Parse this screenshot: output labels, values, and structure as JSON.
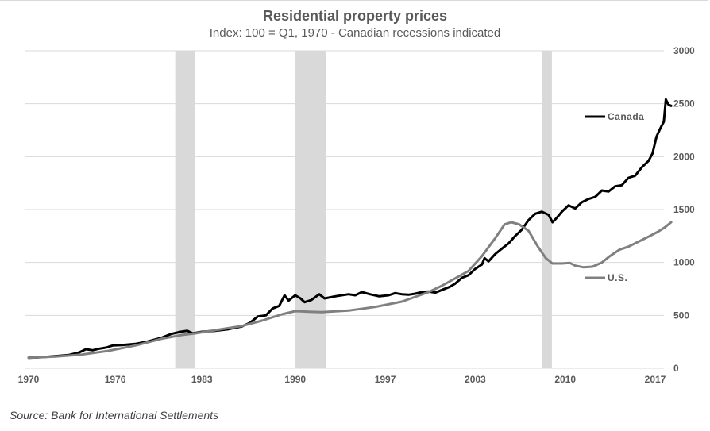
{
  "chart_data": {
    "type": "line",
    "title": "Residential property prices",
    "subtitle": "Index: 100 = Q1, 1970 - Canadian recessions indicated",
    "source": "Source: Bank for International Settlements",
    "xlabel": "",
    "ylabel": "",
    "x_ticks": [
      "1970",
      "1976",
      "1983",
      "1990",
      "1997",
      "2003",
      "2010",
      "2017"
    ],
    "x_tick_years": [
      1970,
      1976.5,
      1983,
      1990,
      1996.75,
      2003.5,
      2010.25,
      2017
    ],
    "xlim": [
      1970,
      2017.6
    ],
    "ylim": [
      0,
      3000
    ],
    "y_ticks": [
      0,
      500,
      1000,
      1500,
      2000,
      2500,
      3000
    ],
    "grid": true,
    "legend": "inline-right",
    "recessions": [
      [
        1981.0,
        1982.5
      ],
      [
        1990.0,
        1992.3
      ],
      [
        2008.5,
        2009.25
      ]
    ],
    "colors": {
      "canada": "#000000",
      "us": "#808080",
      "recession": "#d9d9d9",
      "grid": "#d9d9d9",
      "text": "#595959"
    },
    "series": [
      {
        "name": "Canada",
        "key": "canada",
        "points": [
          [
            1970,
            100
          ],
          [
            1971,
            105
          ],
          [
            1972,
            115
          ],
          [
            1973,
            125
          ],
          [
            1973.8,
            150
          ],
          [
            1974.3,
            180
          ],
          [
            1974.8,
            170
          ],
          [
            1975.3,
            185
          ],
          [
            1975.8,
            195
          ],
          [
            1976.3,
            215
          ],
          [
            1977,
            220
          ],
          [
            1978,
            230
          ],
          [
            1979,
            255
          ],
          [
            1980,
            290
          ],
          [
            1980.7,
            325
          ],
          [
            1981.4,
            345
          ],
          [
            1981.9,
            355
          ],
          [
            1982.3,
            330
          ],
          [
            1983,
            345
          ],
          [
            1984,
            355
          ],
          [
            1985,
            370
          ],
          [
            1986,
            395
          ],
          [
            1986.6,
            430
          ],
          [
            1987.2,
            490
          ],
          [
            1987.8,
            500
          ],
          [
            1988.3,
            565
          ],
          [
            1988.8,
            590
          ],
          [
            1989.2,
            690
          ],
          [
            1989.5,
            640
          ],
          [
            1990,
            690
          ],
          [
            1990.4,
            660
          ],
          [
            1990.7,
            625
          ],
          [
            1991.2,
            645
          ],
          [
            1991.8,
            700
          ],
          [
            1992.2,
            660
          ],
          [
            1993,
            680
          ],
          [
            1994,
            700
          ],
          [
            1994.5,
            690
          ],
          [
            1995,
            720
          ],
          [
            1995.6,
            700
          ],
          [
            1996.3,
            680
          ],
          [
            1997,
            690
          ],
          [
            1997.5,
            710
          ],
          [
            1998,
            700
          ],
          [
            1998.5,
            695
          ],
          [
            1999,
            705
          ],
          [
            1999.5,
            720
          ],
          [
            2000,
            725
          ],
          [
            2000.5,
            715
          ],
          [
            2001,
            740
          ],
          [
            2001.6,
            770
          ],
          [
            2002,
            800
          ],
          [
            2002.5,
            855
          ],
          [
            2003,
            880
          ],
          [
            2003.5,
            940
          ],
          [
            2004,
            980
          ],
          [
            2004.2,
            1040
          ],
          [
            2004.5,
            1010
          ],
          [
            2005,
            1080
          ],
          [
            2005.5,
            1130
          ],
          [
            2006,
            1180
          ],
          [
            2006.5,
            1250
          ],
          [
            2007,
            1310
          ],
          [
            2007.5,
            1400
          ],
          [
            2008,
            1460
          ],
          [
            2008.5,
            1480
          ],
          [
            2009,
            1450
          ],
          [
            2009.3,
            1380
          ],
          [
            2009.6,
            1420
          ],
          [
            2010,
            1480
          ],
          [
            2010.5,
            1540
          ],
          [
            2011,
            1510
          ],
          [
            2011.5,
            1570
          ],
          [
            2012,
            1600
          ],
          [
            2012.5,
            1620
          ],
          [
            2013,
            1680
          ],
          [
            2013.5,
            1670
          ],
          [
            2014,
            1720
          ],
          [
            2014.5,
            1730
          ],
          [
            2015,
            1800
          ],
          [
            2015.5,
            1820
          ],
          [
            2016,
            1900
          ],
          [
            2016.5,
            1960
          ],
          [
            2016.8,
            2030
          ],
          [
            2017.1,
            2190
          ],
          [
            2017.4,
            2270
          ],
          [
            2017.65,
            2330
          ],
          [
            2017.8,
            2540
          ],
          [
            2018,
            2490
          ],
          [
            2018.2,
            2480
          ]
        ]
      },
      {
        "name": "U.S.",
        "key": "us",
        "points": [
          [
            1970,
            100
          ],
          [
            1972,
            110
          ],
          [
            1974,
            130
          ],
          [
            1976,
            165
          ],
          [
            1978,
            215
          ],
          [
            1980,
            280
          ],
          [
            1981.5,
            315
          ],
          [
            1982.5,
            330
          ],
          [
            1984,
            360
          ],
          [
            1986,
            400
          ],
          [
            1987.5,
            450
          ],
          [
            1989,
            510
          ],
          [
            1990,
            540
          ],
          [
            1991,
            535
          ],
          [
            1992,
            530
          ],
          [
            1994,
            545
          ],
          [
            1996,
            580
          ],
          [
            1998,
            630
          ],
          [
            2000,
            720
          ],
          [
            2001,
            780
          ],
          [
            2002,
            850
          ],
          [
            2003,
            920
          ],
          [
            2004,
            1060
          ],
          [
            2005,
            1230
          ],
          [
            2005.7,
            1360
          ],
          [
            2006.2,
            1380
          ],
          [
            2006.8,
            1360
          ],
          [
            2007.5,
            1300
          ],
          [
            2008.2,
            1150
          ],
          [
            2008.8,
            1040
          ],
          [
            2009.3,
            990
          ],
          [
            2010,
            990
          ],
          [
            2010.6,
            995
          ],
          [
            2011,
            970
          ],
          [
            2011.6,
            955
          ],
          [
            2012.3,
            960
          ],
          [
            2013,
            1000
          ],
          [
            2013.6,
            1060
          ],
          [
            2014.3,
            1120
          ],
          [
            2015,
            1150
          ],
          [
            2015.8,
            1200
          ],
          [
            2016.6,
            1250
          ],
          [
            2017.2,
            1290
          ],
          [
            2017.7,
            1330
          ],
          [
            2018.2,
            1380
          ]
        ]
      }
    ]
  },
  "legend_labels": {
    "canada": "Canada",
    "us": "U.S."
  }
}
